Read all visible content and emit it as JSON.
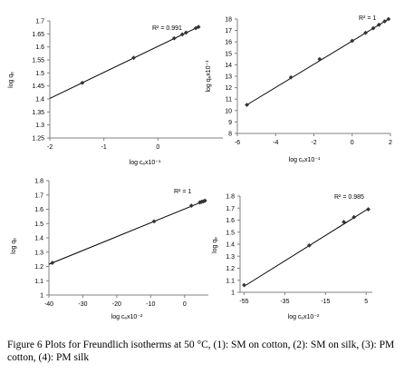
{
  "caption": "Figure 6 Plots for Freundlich isotherms at 50 °C, (1): SM on cotton, (2): SM on silk, (3): PM cotton, (4): PM silk",
  "chart_data": [
    {
      "type": "scatter",
      "title": "",
      "ylabel": "log qₑ",
      "xlabel": "log cₑx10⁻¹",
      "xlim": [
        -2,
        1.2
      ],
      "ylim": [
        1.25,
        1.7
      ],
      "xticks": [
        -2,
        -1,
        0
      ],
      "xtick_labels": [
        "-2",
        "-1",
        "0"
      ],
      "yticks": [
        1.25,
        1.3,
        1.35,
        1.4,
        1.45,
        1.5,
        1.55,
        1.6,
        1.65,
        1.7
      ],
      "ytick_labels": [
        "1.25",
        "1.3",
        "1.35",
        "1.4",
        "1.45",
        "1.5",
        "1.55",
        "1.6",
        "1.65",
        "1.7"
      ],
      "r2_label": "R² = 0.991",
      "points": [
        {
          "x": -1.4,
          "y": 1.462
        },
        {
          "x": -0.45,
          "y": 1.558
        },
        {
          "x": 0.3,
          "y": 1.633
        },
        {
          "x": 0.45,
          "y": 1.648
        },
        {
          "x": 0.52,
          "y": 1.655
        },
        {
          "x": 0.7,
          "y": 1.672
        },
        {
          "x": 0.75,
          "y": 1.677
        }
      ],
      "fit": {
        "x": [
          -2,
          0.75
        ],
        "y": [
          1.402,
          1.677
        ]
      }
    },
    {
      "type": "scatter",
      "title": "",
      "ylabel": "log qₑx10⁻¹",
      "xlabel": "log cₑx10⁻¹",
      "xlim": [
        -6,
        2
      ],
      "ylim": [
        8,
        18
      ],
      "xticks": [
        -6,
        -4,
        -2,
        0,
        2
      ],
      "xtick_labels": [
        "-6",
        "-4",
        "-2",
        "0",
        "2"
      ],
      "yticks": [
        8,
        9,
        10,
        11,
        12,
        13,
        14,
        15,
        16,
        17,
        18
      ],
      "ytick_labels": [
        "8",
        "9",
        "10",
        "11",
        "12",
        "13",
        "14",
        "15",
        "16",
        "17",
        "18"
      ],
      "r2_label": "R² = 1",
      "points": [
        {
          "x": -5.5,
          "y": 10.5
        },
        {
          "x": -3.2,
          "y": 12.9
        },
        {
          "x": -1.7,
          "y": 14.5
        },
        {
          "x": 0,
          "y": 16.1
        },
        {
          "x": 0.7,
          "y": 16.8
        },
        {
          "x": 1.1,
          "y": 17.2
        },
        {
          "x": 1.4,
          "y": 17.5
        },
        {
          "x": 1.7,
          "y": 17.8
        },
        {
          "x": 1.9,
          "y": 18
        }
      ],
      "fit": {
        "x": [
          -5.5,
          1.9
        ],
        "y": [
          10.5,
          18
        ]
      }
    },
    {
      "type": "scatter",
      "title": "",
      "ylabel": "log qₑ",
      "xlabel": "log cₑx10⁻²",
      "xlim": [
        -40,
        7
      ],
      "ylim": [
        1,
        1.8
      ],
      "xticks": [
        -40,
        -30,
        -20,
        -10,
        0
      ],
      "xtick_labels": [
        "-40",
        "-30",
        "-20",
        "-10",
        "0"
      ],
      "yticks": [
        1,
        1.1,
        1.2,
        1.3,
        1.4,
        1.5,
        1.6,
        1.7,
        1.8
      ],
      "ytick_labels": [
        "1",
        "1.1",
        "1.2",
        "1.3",
        "1.4",
        "1.5",
        "1.6",
        "1.7",
        "1.8"
      ],
      "r2_label": "R² = 1",
      "points": [
        {
          "x": -39,
          "y": 1.225
        },
        {
          "x": -9,
          "y": 1.515
        },
        {
          "x": 2,
          "y": 1.625
        },
        {
          "x": 4.5,
          "y": 1.648
        },
        {
          "x": 5,
          "y": 1.652
        },
        {
          "x": 5.5,
          "y": 1.655
        },
        {
          "x": 6,
          "y": 1.66
        }
      ],
      "fit": {
        "x": [
          -40,
          6
        ],
        "y": [
          1.215,
          1.66
        ]
      }
    },
    {
      "type": "scatter",
      "title": "",
      "ylabel": "log qₑ",
      "xlabel": "log cₑx10⁻²",
      "xlim": [
        -57,
        8
      ],
      "ylim": [
        1,
        1.8
      ],
      "xticks": [
        -55,
        -35,
        -15,
        5
      ],
      "xtick_labels": [
        "-55",
        "-35",
        "-15",
        "5"
      ],
      "yticks": [
        1,
        1.1,
        1.2,
        1.3,
        1.4,
        1.5,
        1.6,
        1.7,
        1.8
      ],
      "ytick_labels": [
        "1",
        "1.1",
        "1.2",
        "1.3",
        "1.4",
        "1.5",
        "1.6",
        "1.7",
        "1.8"
      ],
      "r2_label": "R² = 0.985",
      "points": [
        {
          "x": -55,
          "y": 1.06
        },
        {
          "x": -23,
          "y": 1.39
        },
        {
          "x": -6,
          "y": 1.585
        },
        {
          "x": -1,
          "y": 1.625
        },
        {
          "x": 6,
          "y": 1.69
        }
      ],
      "fit": {
        "x": [
          -55,
          6.5
        ],
        "y": [
          1.05,
          1.7
        ]
      }
    }
  ]
}
